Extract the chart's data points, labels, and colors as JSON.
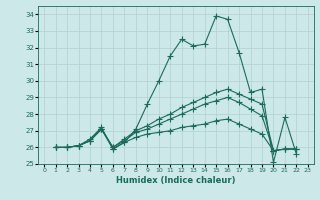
{
  "xlabel": "Humidex (Indice chaleur)",
  "bg_color": "#cde8e8",
  "grid_color": "#b0d0d0",
  "line_color": "#1a6b5a",
  "xmin": 0,
  "xmax": 23,
  "ymin": 25,
  "ymax": 34,
  "series": [
    [
      26.0,
      26.0,
      26.1,
      26.5,
      27.2,
      25.9,
      26.3,
      27.1,
      28.6,
      30.0,
      31.5,
      32.5,
      32.1,
      32.2,
      33.9,
      33.7,
      31.7,
      29.3,
      29.5,
      25.1,
      27.8,
      25.6
    ],
    [
      26.0,
      26.0,
      26.1,
      26.4,
      27.1,
      26.0,
      26.5,
      27.0,
      27.3,
      27.7,
      28.0,
      28.4,
      28.7,
      29.0,
      29.3,
      29.5,
      29.2,
      28.9,
      28.6,
      25.8,
      25.9,
      25.9
    ],
    [
      26.0,
      26.0,
      26.1,
      26.4,
      27.1,
      26.0,
      26.4,
      26.9,
      27.1,
      27.4,
      27.7,
      28.0,
      28.3,
      28.6,
      28.8,
      29.0,
      28.7,
      28.3,
      27.9,
      25.8,
      25.9,
      25.9
    ],
    [
      26.0,
      26.0,
      26.1,
      26.4,
      27.1,
      25.9,
      26.3,
      26.6,
      26.8,
      26.9,
      27.0,
      27.2,
      27.3,
      27.4,
      27.6,
      27.7,
      27.4,
      27.1,
      26.8,
      25.8,
      25.9,
      25.9
    ]
  ],
  "x_start": 0,
  "marker": "+",
  "markersize": 4,
  "linewidth": 0.8
}
